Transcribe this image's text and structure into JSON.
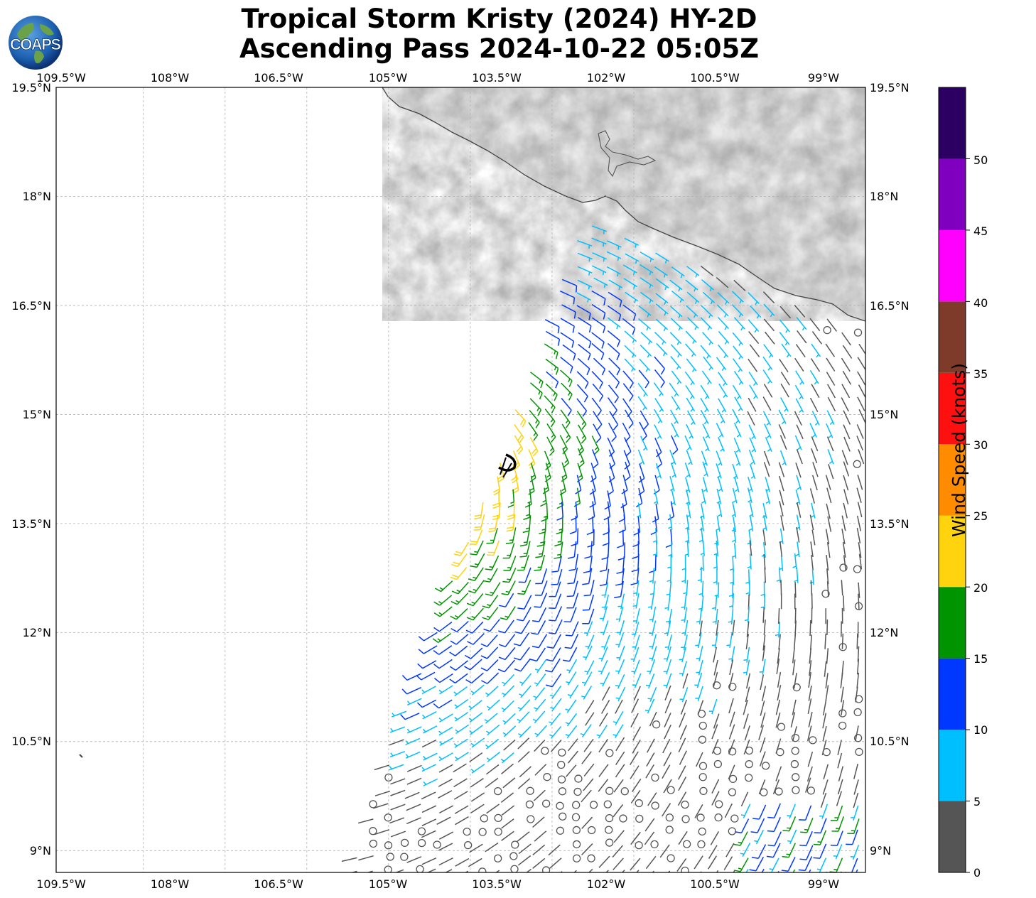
{
  "title_line1": "Tropical Storm Kristy (2024) HY-2D",
  "title_line2": "Ascending Pass 2024-10-22 05:05Z",
  "logo_text": "COAPS",
  "lon_labels": [
    "109.5°W",
    "108°W",
    "106.5°W",
    "105°W",
    "103.5°W",
    "102°W",
    "100.5°W",
    "99°W"
  ],
  "lat_labels": [
    "19.5°N",
    "18°N",
    "16.5°N",
    "15°N",
    "13.5°N",
    "12°N",
    "10.5°N",
    "9°N"
  ],
  "colorbar": {
    "label": "Wind Speed (knots)",
    "tick_labels": [
      "0",
      "5",
      "10",
      "15",
      "20",
      "25",
      "30",
      "35",
      "40",
      "45",
      "50"
    ],
    "bins": [
      {
        "from": 0,
        "to": 5,
        "color": "#555555"
      },
      {
        "from": 5,
        "to": 10,
        "color": "#00bfff"
      },
      {
        "from": 10,
        "to": 15,
        "color": "#0038ff"
      },
      {
        "from": 15,
        "to": 20,
        "color": "#009400"
      },
      {
        "from": 20,
        "to": 25,
        "color": "#ffd30d"
      },
      {
        "from": 25,
        "to": 30,
        "color": "#ff8c00"
      },
      {
        "from": 30,
        "to": 35,
        "color": "#ff1010"
      },
      {
        "from": 35,
        "to": 40,
        "color": "#7f3b2a"
      },
      {
        "from": 40,
        "to": 45,
        "color": "#ff00ff"
      },
      {
        "from": 45,
        "to": 50,
        "color": "#8000bf"
      },
      {
        "from": 50,
        "to": 55,
        "color": "#2b0062"
      }
    ]
  },
  "storm_center": {
    "lon": -103.3,
    "lat": 14.4
  },
  "colors": {
    "land": "#e9e9e9",
    "coast": "#444444",
    "grid": "#b0b0b0",
    "center_marker": "#000000"
  }
}
